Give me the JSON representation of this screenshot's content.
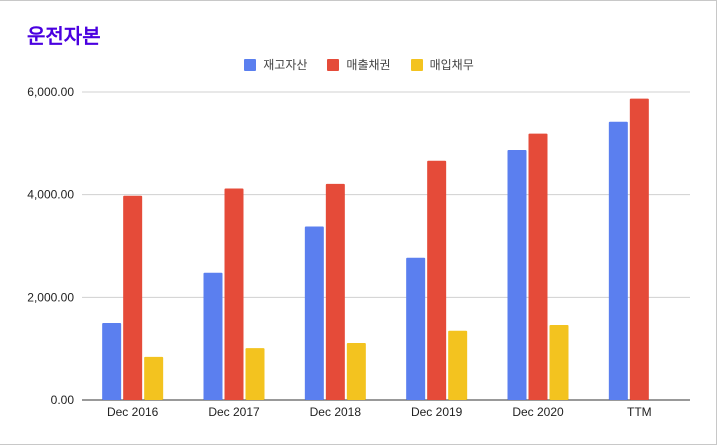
{
  "chart_data": {
    "type": "bar",
    "title": "운전자본",
    "categories": [
      "Dec 2016",
      "Dec 2017",
      "Dec 2018",
      "Dec 2019",
      "Dec 2020",
      "TTM"
    ],
    "series": [
      {
        "name": "재고자산",
        "color": "#5b7fef",
        "values": [
          1500,
          2480,
          3380,
          2770,
          4870,
          5420
        ]
      },
      {
        "name": "매출채권",
        "color": "#e54b39",
        "values": [
          3980,
          4120,
          4210,
          4660,
          5190,
          5870
        ]
      },
      {
        "name": "매입채무",
        "color": "#f3c31f",
        "values": [
          840,
          1010,
          1110,
          1350,
          1460,
          null
        ]
      }
    ],
    "yticks": [
      "0.00",
      "2,000.00",
      "4,000.00",
      "6,000.00"
    ],
    "ylim": [
      0,
      6000
    ],
    "grid": true,
    "legend_position": "top"
  }
}
